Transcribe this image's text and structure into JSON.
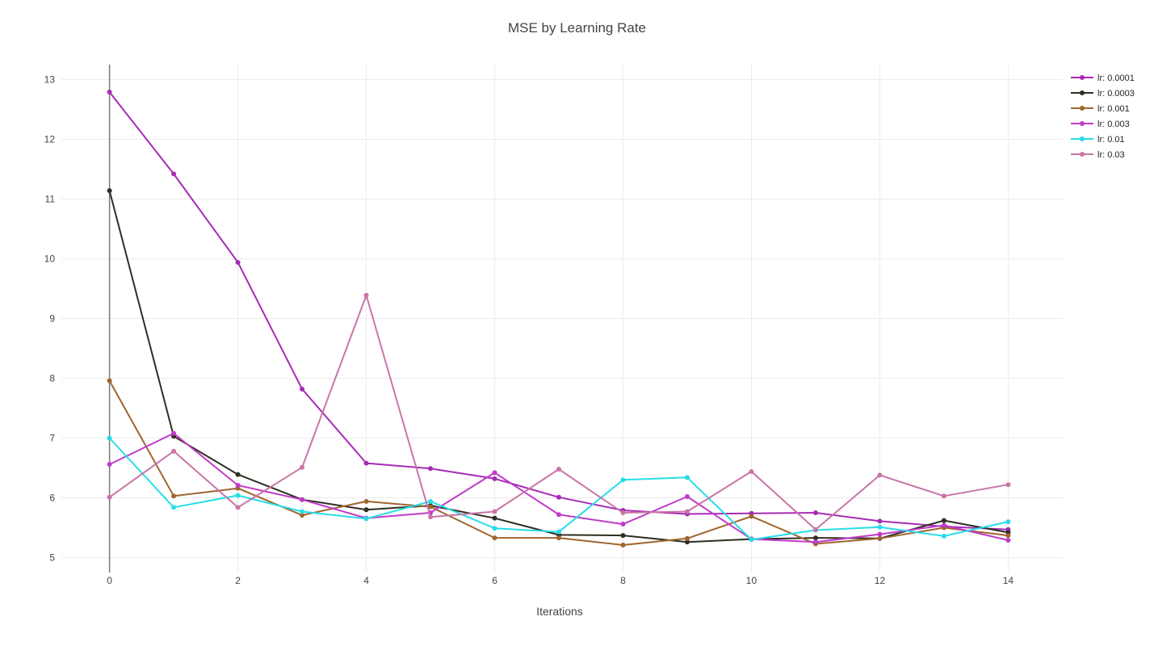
{
  "chart_data": {
    "type": "line",
    "title": "MSE by Learning Rate",
    "xlabel": "Iterations",
    "ylabel": "",
    "xlim": [
      -0.75,
      14.85
    ],
    "ylim": [
      4.75,
      13.25
    ],
    "xticks": [
      0,
      2,
      4,
      6,
      8,
      10,
      12,
      14
    ],
    "yticks": [
      5,
      6,
      7,
      8,
      9,
      10,
      11,
      12,
      13
    ],
    "grid": true,
    "legend_position": "top-right",
    "x": [
      0,
      1,
      2,
      3,
      4,
      5,
      6,
      7,
      8,
      9,
      10,
      11,
      12,
      13,
      14
    ],
    "series": [
      {
        "name": "lr: 0.0001",
        "color": "#A62BB5",
        "values": [
          12.79,
          11.42,
          9.94,
          7.82,
          6.58,
          6.49,
          6.32,
          6.01,
          5.79,
          5.73,
          5.74,
          5.75,
          5.61,
          5.52,
          5.47
        ]
      },
      {
        "name": "lr: 0.0003",
        "color": "#2E2E22",
        "values": [
          11.14,
          7.03,
          6.39,
          5.97,
          5.8,
          5.87,
          5.66,
          5.38,
          5.37,
          5.26,
          5.31,
          5.33,
          5.32,
          5.62,
          5.42
        ]
      },
      {
        "name": "lr: 0.001",
        "color": "#A0652E",
        "values": [
          7.96,
          6.03,
          6.16,
          5.71,
          5.94,
          5.85,
          5.33,
          5.33,
          5.21,
          5.32,
          5.69,
          5.23,
          5.32,
          5.5,
          5.37
        ]
      },
      {
        "name": "lr: 0.003",
        "color": "#C03BC9",
        "values": [
          6.56,
          7.08,
          6.21,
          5.97,
          5.66,
          5.75,
          6.42,
          5.72,
          5.56,
          6.02,
          5.31,
          5.26,
          5.39,
          5.54,
          5.29
        ]
      },
      {
        "name": "lr: 0.01",
        "color": "#27DDE8",
        "values": [
          7.0,
          5.84,
          6.04,
          5.77,
          5.65,
          5.94,
          5.49,
          5.43,
          6.3,
          6.34,
          5.3,
          5.46,
          5.51,
          5.36,
          5.6
        ]
      },
      {
        "name": "lr: 0.03",
        "color": "#C875A7",
        "values": [
          6.01,
          6.78,
          5.84,
          6.51,
          9.39,
          5.68,
          5.77,
          6.48,
          5.75,
          5.77,
          6.44,
          5.47,
          6.38,
          6.03,
          6.22
        ]
      }
    ]
  }
}
